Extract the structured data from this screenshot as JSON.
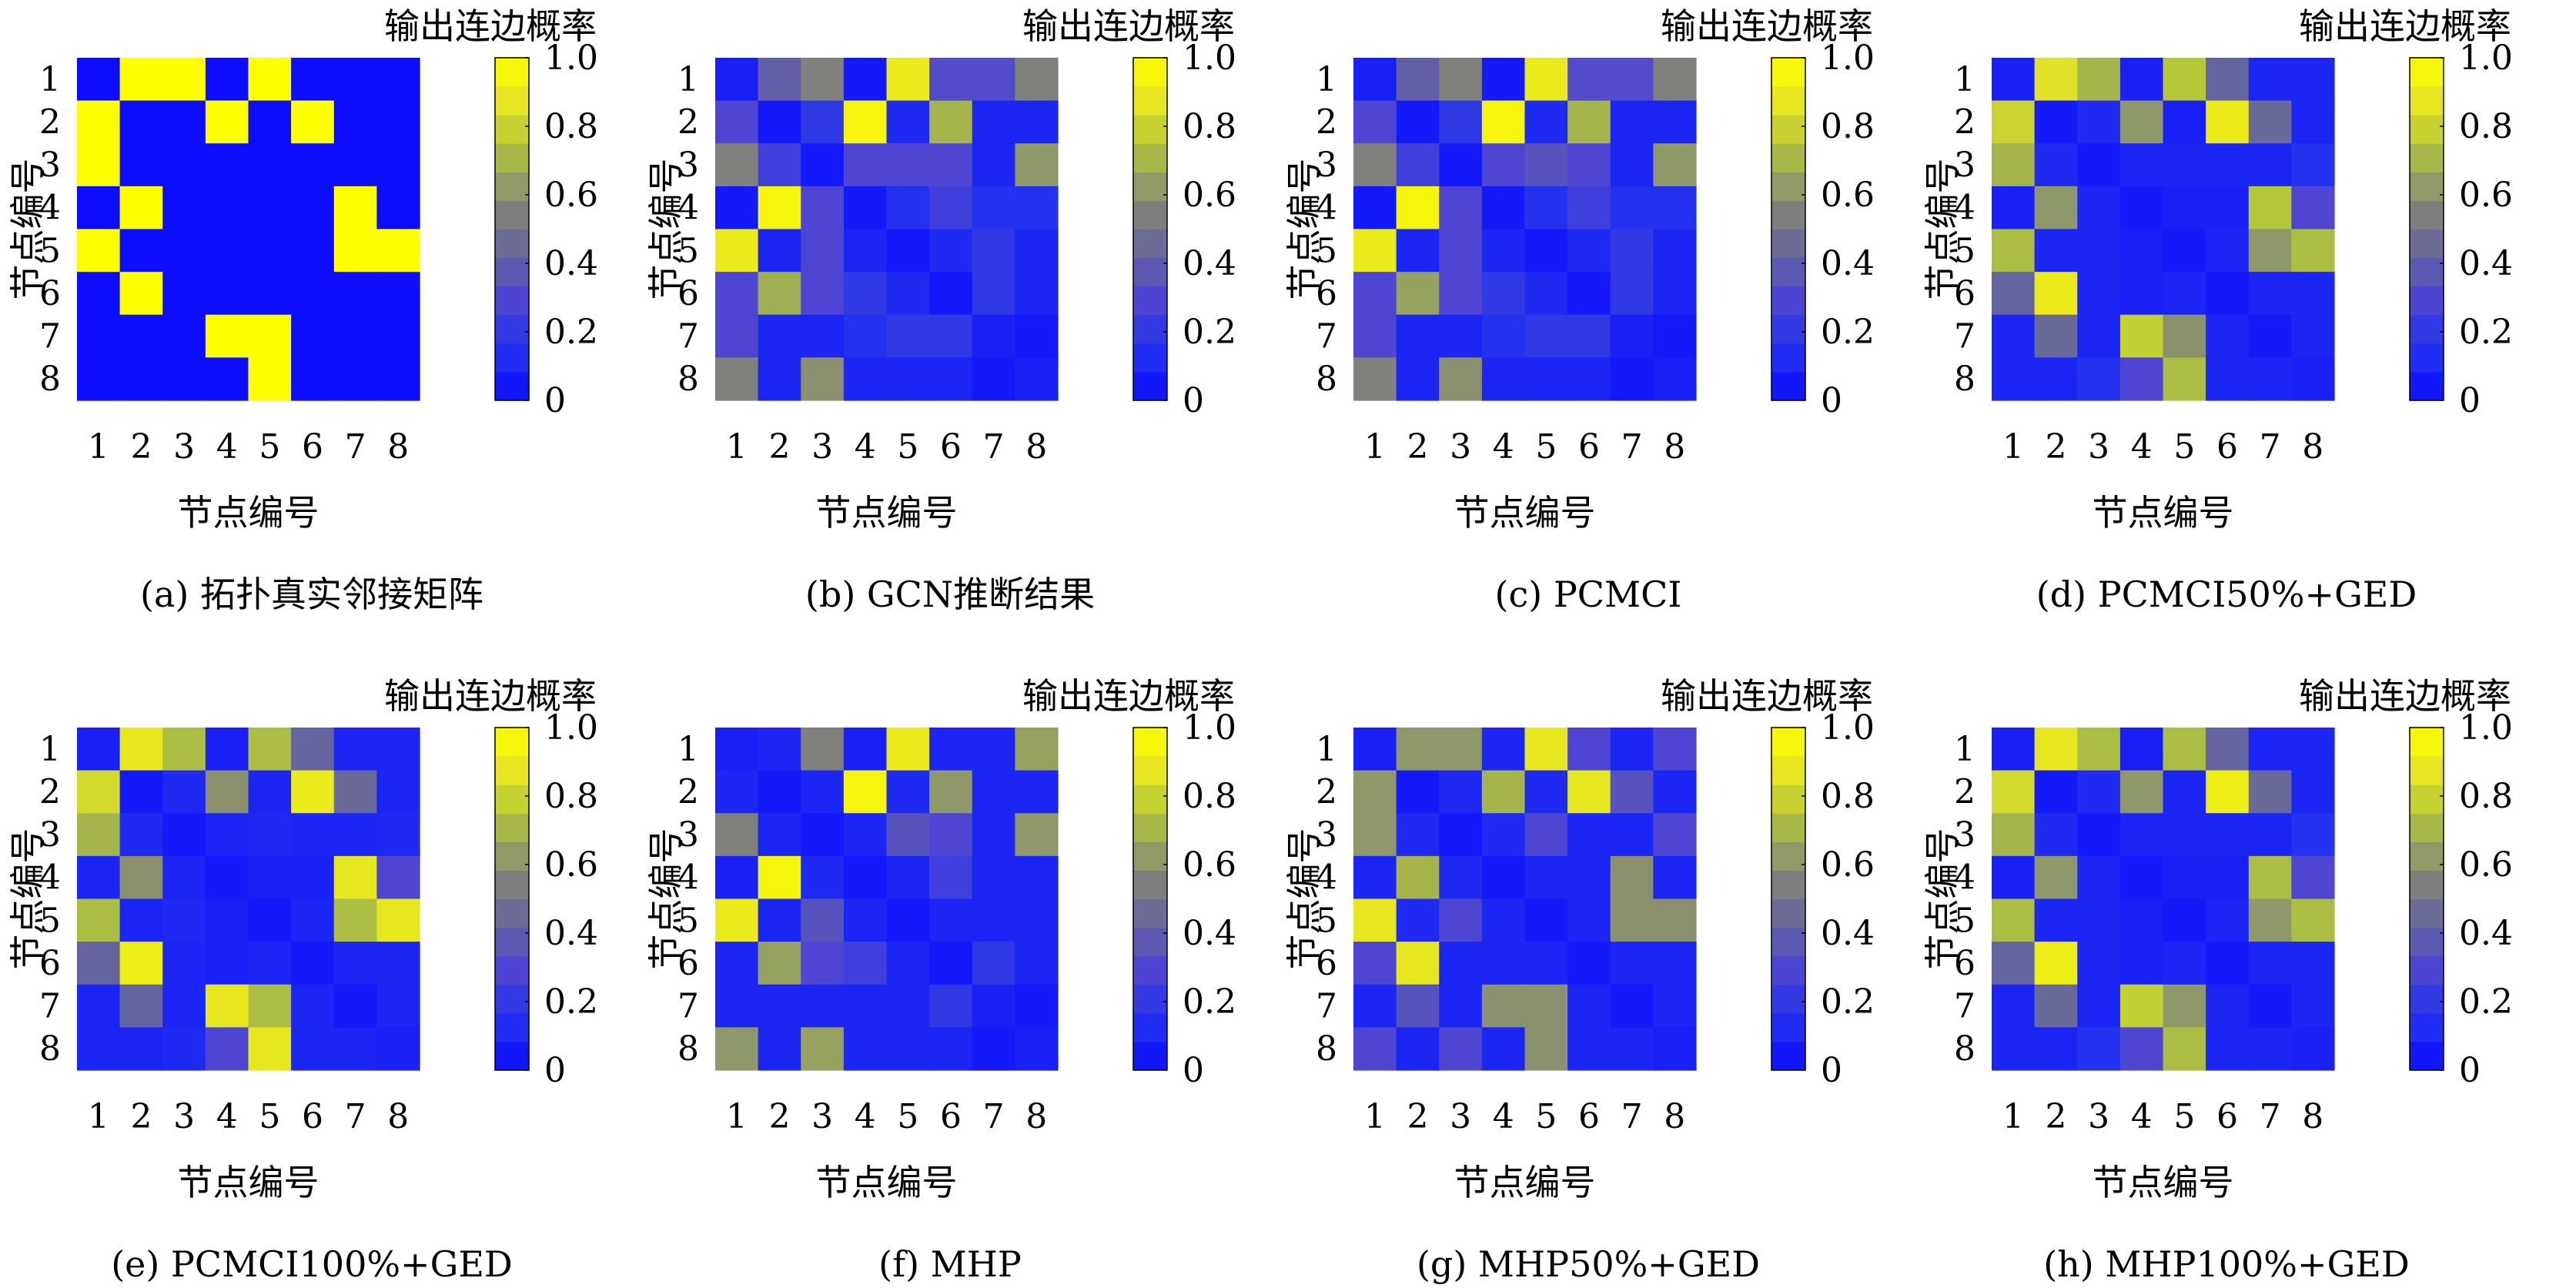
{
  "chart_data": [
    {
      "type": "heatmap",
      "caption": "(a) 拓扑真实邻接矩阵",
      "title": "输出连边概率",
      "xlabel": "节点编号",
      "ylabel": "节点编号",
      "xticks": [
        "1",
        "2",
        "3",
        "4",
        "5",
        "6",
        "7",
        "8"
      ],
      "yticks": [
        "1",
        "2",
        "3",
        "4",
        "5",
        "6",
        "7",
        "8"
      ],
      "colorbar_ticks": [
        "0",
        "0.2",
        "0.4",
        "0.6",
        "0.8",
        "1.0"
      ],
      "vmin": 0,
      "vmax": 1,
      "matrix": [
        [
          0,
          1,
          1,
          0,
          1,
          0,
          0,
          0
        ],
        [
          1,
          0,
          0,
          1,
          0,
          1,
          0,
          0
        ],
        [
          1,
          0,
          0,
          0,
          0,
          0,
          0,
          0
        ],
        [
          0,
          1,
          0,
          0,
          0,
          0,
          1,
          0
        ],
        [
          1,
          0,
          0,
          0,
          0,
          0,
          1,
          1
        ],
        [
          0,
          1,
          0,
          0,
          0,
          0,
          0,
          0
        ],
        [
          0,
          0,
          0,
          1,
          1,
          0,
          0,
          0
        ],
        [
          0,
          0,
          0,
          0,
          1,
          0,
          0,
          0
        ]
      ]
    },
    {
      "type": "heatmap",
      "caption": "(b) GCN推断结果",
      "title": "输出连边概率",
      "xlabel": "节点编号",
      "ylabel": "节点编号",
      "xticks": [
        "1",
        "2",
        "3",
        "4",
        "5",
        "6",
        "7",
        "8"
      ],
      "yticks": [
        "1",
        "2",
        "3",
        "4",
        "5",
        "6",
        "7",
        "8"
      ],
      "colorbar_ticks": [
        "0",
        "0.2",
        "0.4",
        "0.6",
        "0.8",
        "1.0"
      ],
      "vmin": 0,
      "vmax": 1,
      "matrix": [
        [
          0.08,
          0.4,
          0.55,
          0.05,
          0.9,
          0.32,
          0.32,
          0.55
        ],
        [
          0.3,
          0.05,
          0.2,
          0.95,
          0.12,
          0.7,
          0.1,
          0.1
        ],
        [
          0.55,
          0.25,
          0.05,
          0.3,
          0.3,
          0.3,
          0.1,
          0.62
        ],
        [
          0.05,
          0.95,
          0.3,
          0.05,
          0.15,
          0.25,
          0.15,
          0.15
        ],
        [
          0.9,
          0.1,
          0.3,
          0.1,
          0.05,
          0.12,
          0.2,
          0.1
        ],
        [
          0.3,
          0.68,
          0.3,
          0.2,
          0.12,
          0.05,
          0.2,
          0.1
        ],
        [
          0.3,
          0.1,
          0.1,
          0.15,
          0.2,
          0.2,
          0.08,
          0.05
        ],
        [
          0.55,
          0.1,
          0.6,
          0.1,
          0.1,
          0.1,
          0.05,
          0.08
        ]
      ]
    },
    {
      "type": "heatmap",
      "caption": "(c) PCMCI",
      "title": "输出连边概率",
      "xlabel": "节点编号",
      "ylabel": "节点编号",
      "xticks": [
        "1",
        "2",
        "3",
        "4",
        "5",
        "6",
        "7",
        "8"
      ],
      "yticks": [
        "1",
        "2",
        "3",
        "4",
        "5",
        "6",
        "7",
        "8"
      ],
      "colorbar_ticks": [
        "0",
        "0.2",
        "0.4",
        "0.6",
        "0.8",
        "1.0"
      ],
      "vmin": 0,
      "vmax": 1,
      "matrix": [
        [
          0.08,
          0.4,
          0.55,
          0.05,
          0.9,
          0.32,
          0.32,
          0.55
        ],
        [
          0.3,
          0.05,
          0.2,
          0.95,
          0.12,
          0.7,
          0.1,
          0.1
        ],
        [
          0.55,
          0.25,
          0.05,
          0.3,
          0.35,
          0.3,
          0.1,
          0.62
        ],
        [
          0.05,
          0.95,
          0.3,
          0.05,
          0.15,
          0.25,
          0.15,
          0.15
        ],
        [
          0.9,
          0.1,
          0.3,
          0.1,
          0.05,
          0.12,
          0.2,
          0.1
        ],
        [
          0.3,
          0.65,
          0.3,
          0.2,
          0.12,
          0.05,
          0.2,
          0.1
        ],
        [
          0.3,
          0.1,
          0.1,
          0.15,
          0.2,
          0.2,
          0.08,
          0.05
        ],
        [
          0.55,
          0.1,
          0.6,
          0.1,
          0.1,
          0.1,
          0.05,
          0.08
        ]
      ]
    },
    {
      "type": "heatmap",
      "caption": "(d) PCMCI50%+GED",
      "title": "输出连边概率",
      "xlabel": "节点编号",
      "ylabel": "节点编号",
      "xticks": [
        "1",
        "2",
        "3",
        "4",
        "5",
        "6",
        "7",
        "8"
      ],
      "yticks": [
        "1",
        "2",
        "3",
        "4",
        "5",
        "6",
        "7",
        "8"
      ],
      "colorbar_ticks": [
        "0",
        "0.2",
        "0.4",
        "0.6",
        "0.8",
        "1.0"
      ],
      "vmin": 0,
      "vmax": 1,
      "matrix": [
        [
          0.08,
          0.85,
          0.7,
          0.08,
          0.75,
          0.42,
          0.1,
          0.1
        ],
        [
          0.8,
          0.05,
          0.12,
          0.62,
          0.08,
          0.9,
          0.45,
          0.1
        ],
        [
          0.7,
          0.12,
          0.05,
          0.1,
          0.1,
          0.1,
          0.1,
          0.15
        ],
        [
          0.08,
          0.62,
          0.1,
          0.05,
          0.08,
          0.08,
          0.75,
          0.3
        ],
        [
          0.72,
          0.1,
          0.1,
          0.08,
          0.05,
          0.1,
          0.62,
          0.72
        ],
        [
          0.42,
          0.9,
          0.1,
          0.08,
          0.1,
          0.05,
          0.1,
          0.1
        ],
        [
          0.1,
          0.45,
          0.1,
          0.78,
          0.6,
          0.1,
          0.05,
          0.1
        ],
        [
          0.1,
          0.1,
          0.15,
          0.3,
          0.72,
          0.1,
          0.1,
          0.08
        ]
      ]
    },
    {
      "type": "heatmap",
      "caption": "(e) PCMCI100%+GED",
      "title": "输出连边概率",
      "xlabel": "节点编号",
      "ylabel": "节点编号",
      "xticks": [
        "1",
        "2",
        "3",
        "4",
        "5",
        "6",
        "7",
        "8"
      ],
      "yticks": [
        "1",
        "2",
        "3",
        "4",
        "5",
        "6",
        "7",
        "8"
      ],
      "colorbar_ticks": [
        "0",
        "0.2",
        "0.4",
        "0.6",
        "0.8",
        "1.0"
      ],
      "vmin": 0,
      "vmax": 1,
      "matrix": [
        [
          0.08,
          0.88,
          0.72,
          0.08,
          0.72,
          0.42,
          0.1,
          0.1
        ],
        [
          0.82,
          0.05,
          0.12,
          0.6,
          0.1,
          0.9,
          0.45,
          0.1
        ],
        [
          0.7,
          0.12,
          0.05,
          0.1,
          0.12,
          0.1,
          0.1,
          0.12
        ],
        [
          0.1,
          0.6,
          0.1,
          0.05,
          0.08,
          0.08,
          0.88,
          0.3
        ],
        [
          0.72,
          0.1,
          0.12,
          0.08,
          0.05,
          0.1,
          0.72,
          0.88
        ],
        [
          0.42,
          0.92,
          0.1,
          0.08,
          0.1,
          0.05,
          0.1,
          0.1
        ],
        [
          0.1,
          0.42,
          0.1,
          0.88,
          0.72,
          0.1,
          0.05,
          0.1
        ],
        [
          0.1,
          0.1,
          0.12,
          0.3,
          0.88,
          0.1,
          0.1,
          0.08
        ]
      ]
    },
    {
      "type": "heatmap",
      "caption": "(f) MHP",
      "title": "输出连边概率",
      "xlabel": "节点编号",
      "ylabel": "节点编号",
      "xticks": [
        "1",
        "2",
        "3",
        "4",
        "5",
        "6",
        "7",
        "8"
      ],
      "yticks": [
        "1",
        "2",
        "3",
        "4",
        "5",
        "6",
        "7",
        "8"
      ],
      "colorbar_ticks": [
        "0",
        "0.2",
        "0.4",
        "0.6",
        "0.8",
        "1.0"
      ],
      "vmin": 0,
      "vmax": 1,
      "matrix": [
        [
          0.08,
          0.1,
          0.55,
          0.08,
          0.9,
          0.1,
          0.1,
          0.65
        ],
        [
          0.1,
          0.05,
          0.1,
          0.95,
          0.12,
          0.62,
          0.1,
          0.1
        ],
        [
          0.55,
          0.1,
          0.05,
          0.1,
          0.35,
          0.3,
          0.1,
          0.62
        ],
        [
          0.08,
          0.95,
          0.12,
          0.05,
          0.1,
          0.25,
          0.1,
          0.1
        ],
        [
          0.9,
          0.1,
          0.35,
          0.1,
          0.05,
          0.1,
          0.1,
          0.1
        ],
        [
          0.1,
          0.65,
          0.3,
          0.25,
          0.1,
          0.05,
          0.2,
          0.1
        ],
        [
          0.1,
          0.1,
          0.1,
          0.1,
          0.1,
          0.2,
          0.08,
          0.05
        ],
        [
          0.62,
          0.1,
          0.65,
          0.1,
          0.1,
          0.1,
          0.05,
          0.08
        ]
      ]
    },
    {
      "type": "heatmap",
      "caption": "(g) MHP50%+GED",
      "title": "输出连边概率",
      "xlabel": "节点编号",
      "ylabel": "节点编号",
      "xticks": [
        "1",
        "2",
        "3",
        "4",
        "5",
        "6",
        "7",
        "8"
      ],
      "yticks": [
        "1",
        "2",
        "3",
        "4",
        "5",
        "6",
        "7",
        "8"
      ],
      "colorbar_ticks": [
        "0",
        "0.2",
        "0.4",
        "0.6",
        "0.8",
        "1.0"
      ],
      "vmin": 0,
      "vmax": 1,
      "matrix": [
        [
          0.08,
          0.62,
          0.62,
          0.1,
          0.88,
          0.3,
          0.1,
          0.3
        ],
        [
          0.62,
          0.05,
          0.12,
          0.7,
          0.12,
          0.88,
          0.35,
          0.1
        ],
        [
          0.62,
          0.12,
          0.05,
          0.12,
          0.3,
          0.1,
          0.1,
          0.3
        ],
        [
          0.1,
          0.7,
          0.12,
          0.05,
          0.1,
          0.1,
          0.6,
          0.1
        ],
        [
          0.88,
          0.12,
          0.3,
          0.1,
          0.05,
          0.1,
          0.6,
          0.6
        ],
        [
          0.3,
          0.88,
          0.1,
          0.1,
          0.1,
          0.05,
          0.1,
          0.1
        ],
        [
          0.1,
          0.35,
          0.1,
          0.6,
          0.6,
          0.1,
          0.05,
          0.1
        ],
        [
          0.3,
          0.1,
          0.3,
          0.1,
          0.6,
          0.1,
          0.1,
          0.08
        ]
      ]
    },
    {
      "type": "heatmap",
      "caption": "(h) MHP100%+GED",
      "title": "输出连边概率",
      "xlabel": "节点编号",
      "ylabel": "节点编号",
      "xticks": [
        "1",
        "2",
        "3",
        "4",
        "5",
        "6",
        "7",
        "8"
      ],
      "yticks": [
        "1",
        "2",
        "3",
        "4",
        "5",
        "6",
        "7",
        "8"
      ],
      "colorbar_ticks": [
        "0",
        "0.2",
        "0.4",
        "0.6",
        "0.8",
        "1.0"
      ],
      "vmin": 0,
      "vmax": 1,
      "matrix": [
        [
          0.08,
          0.88,
          0.72,
          0.08,
          0.72,
          0.42,
          0.1,
          0.1
        ],
        [
          0.82,
          0.05,
          0.12,
          0.62,
          0.1,
          0.92,
          0.45,
          0.1
        ],
        [
          0.7,
          0.12,
          0.05,
          0.1,
          0.1,
          0.1,
          0.1,
          0.15
        ],
        [
          0.08,
          0.62,
          0.1,
          0.05,
          0.08,
          0.08,
          0.72,
          0.3
        ],
        [
          0.72,
          0.1,
          0.1,
          0.08,
          0.05,
          0.1,
          0.62,
          0.72
        ],
        [
          0.42,
          0.92,
          0.1,
          0.08,
          0.1,
          0.05,
          0.1,
          0.1
        ],
        [
          0.1,
          0.45,
          0.1,
          0.78,
          0.62,
          0.1,
          0.05,
          0.1
        ],
        [
          0.1,
          0.1,
          0.15,
          0.3,
          0.72,
          0.1,
          0.1,
          0.08
        ]
      ]
    }
  ]
}
